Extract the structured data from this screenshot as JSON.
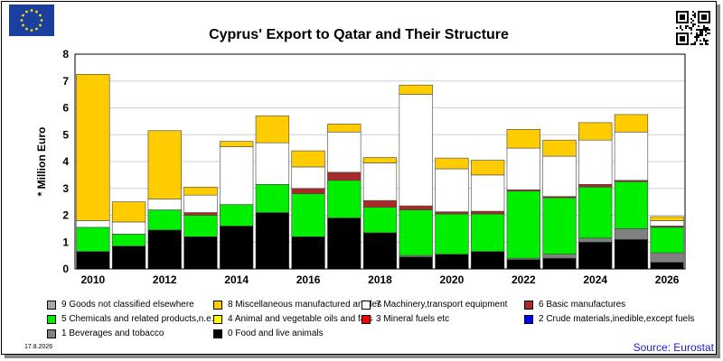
{
  "header": {
    "title": "Cyprus' Export to Qatar and Their Structure",
    "flag_icon": "eu-flag-icon",
    "qr_icon": "qr-code-icon"
  },
  "footer": {
    "date": "17.8.2026",
    "source": "Source: Eurostat"
  },
  "chart_data": {
    "type": "bar",
    "stacked": true,
    "title": "Cyprus' Export to Qatar and Their Structure",
    "ylabel": "* Million Euro",
    "xlabel": "",
    "ylim": [
      0,
      8
    ],
    "yticks": [
      0,
      1,
      2,
      3,
      4,
      5,
      6,
      7,
      8
    ],
    "grid": "horizontal",
    "legend_placement": "bottom",
    "categories": [
      "2010",
      "2011",
      "2012",
      "2013",
      "2014",
      "2015",
      "2016",
      "2017",
      "2018",
      "2019",
      "2020",
      "2021",
      "2022",
      "2023",
      "2024",
      "2025",
      "2026"
    ],
    "xtick_labels": [
      "2010",
      "",
      "2012",
      "",
      "2014",
      "",
      "2016",
      "",
      "2018",
      "",
      "2020",
      "",
      "2022",
      "",
      "2024",
      "",
      "2026"
    ],
    "legend_order": [
      9,
      8,
      7,
      6,
      5,
      4,
      3,
      2,
      1,
      0
    ],
    "series": [
      {
        "name": "0 Food and live animals",
        "color": "#000000",
        "values": [
          0.65,
          0.85,
          1.45,
          1.2,
          1.6,
          2.1,
          1.2,
          1.9,
          1.35,
          0.45,
          0.55,
          0.65,
          0.35,
          0.4,
          1.0,
          1.1,
          0.25
        ]
      },
      {
        "name": "1 Beverages and tobacco",
        "color": "#808080",
        "values": [
          0.0,
          0.0,
          0.0,
          0.0,
          0.0,
          0.0,
          0.0,
          0.0,
          0.0,
          0.05,
          0.0,
          0.0,
          0.05,
          0.15,
          0.15,
          0.4,
          0.35
        ]
      },
      {
        "name": "2 Crude materials,inedible,except fuels",
        "color": "#0000ff",
        "values": [
          0,
          0,
          0,
          0,
          0,
          0,
          0,
          0,
          0,
          0,
          0,
          0,
          0,
          0,
          0,
          0,
          0
        ]
      },
      {
        "name": "3 Mineral fuels etc",
        "color": "#ff0000",
        "values": [
          0,
          0,
          0,
          0,
          0,
          0,
          0,
          0,
          0,
          0,
          0,
          0,
          0,
          0,
          0,
          0,
          0
        ]
      },
      {
        "name": "4 Animal and vegetable oils and fats",
        "color": "#ffff00",
        "values": [
          0,
          0,
          0,
          0,
          0,
          0,
          0,
          0,
          0,
          0,
          0,
          0,
          0,
          0,
          0,
          0,
          0
        ]
      },
      {
        "name": "5 Chemicals and related products,n.e.s.",
        "color": "#00ee00",
        "values": [
          0.9,
          0.45,
          0.75,
          0.8,
          0.8,
          1.05,
          1.6,
          1.4,
          0.95,
          1.7,
          1.5,
          1.4,
          2.5,
          2.1,
          1.9,
          1.75,
          0.95
        ]
      },
      {
        "name": "6 Basic manufactures",
        "color": "#aa2a2a",
        "values": [
          0.0,
          0.0,
          0.0,
          0.1,
          0.0,
          0.0,
          0.2,
          0.3,
          0.25,
          0.15,
          0.08,
          0.1,
          0.05,
          0.05,
          0.1,
          0.05,
          0.05
        ]
      },
      {
        "name": "7 Machinery,transport equipment",
        "color": "#ffffff",
        "values": [
          0.25,
          0.45,
          0.4,
          0.65,
          2.15,
          1.55,
          0.8,
          1.5,
          1.4,
          4.15,
          1.6,
          1.35,
          1.55,
          1.5,
          1.65,
          1.8,
          0.2
        ]
      },
      {
        "name": "8 Miscellaneous manufactured articles",
        "color": "#ffcc00",
        "values": [
          5.45,
          0.75,
          2.55,
          0.3,
          0.2,
          1.0,
          0.6,
          0.3,
          0.2,
          0.35,
          0.4,
          0.55,
          0.7,
          0.6,
          0.65,
          0.65,
          0.15
        ]
      },
      {
        "name": "9 Goods not classified elsewhere",
        "color": "#a8a8a8",
        "values": [
          0,
          0,
          0,
          0,
          0,
          0,
          0,
          0,
          0,
          0,
          0,
          0,
          0,
          0,
          0,
          0,
          0
        ]
      }
    ]
  }
}
